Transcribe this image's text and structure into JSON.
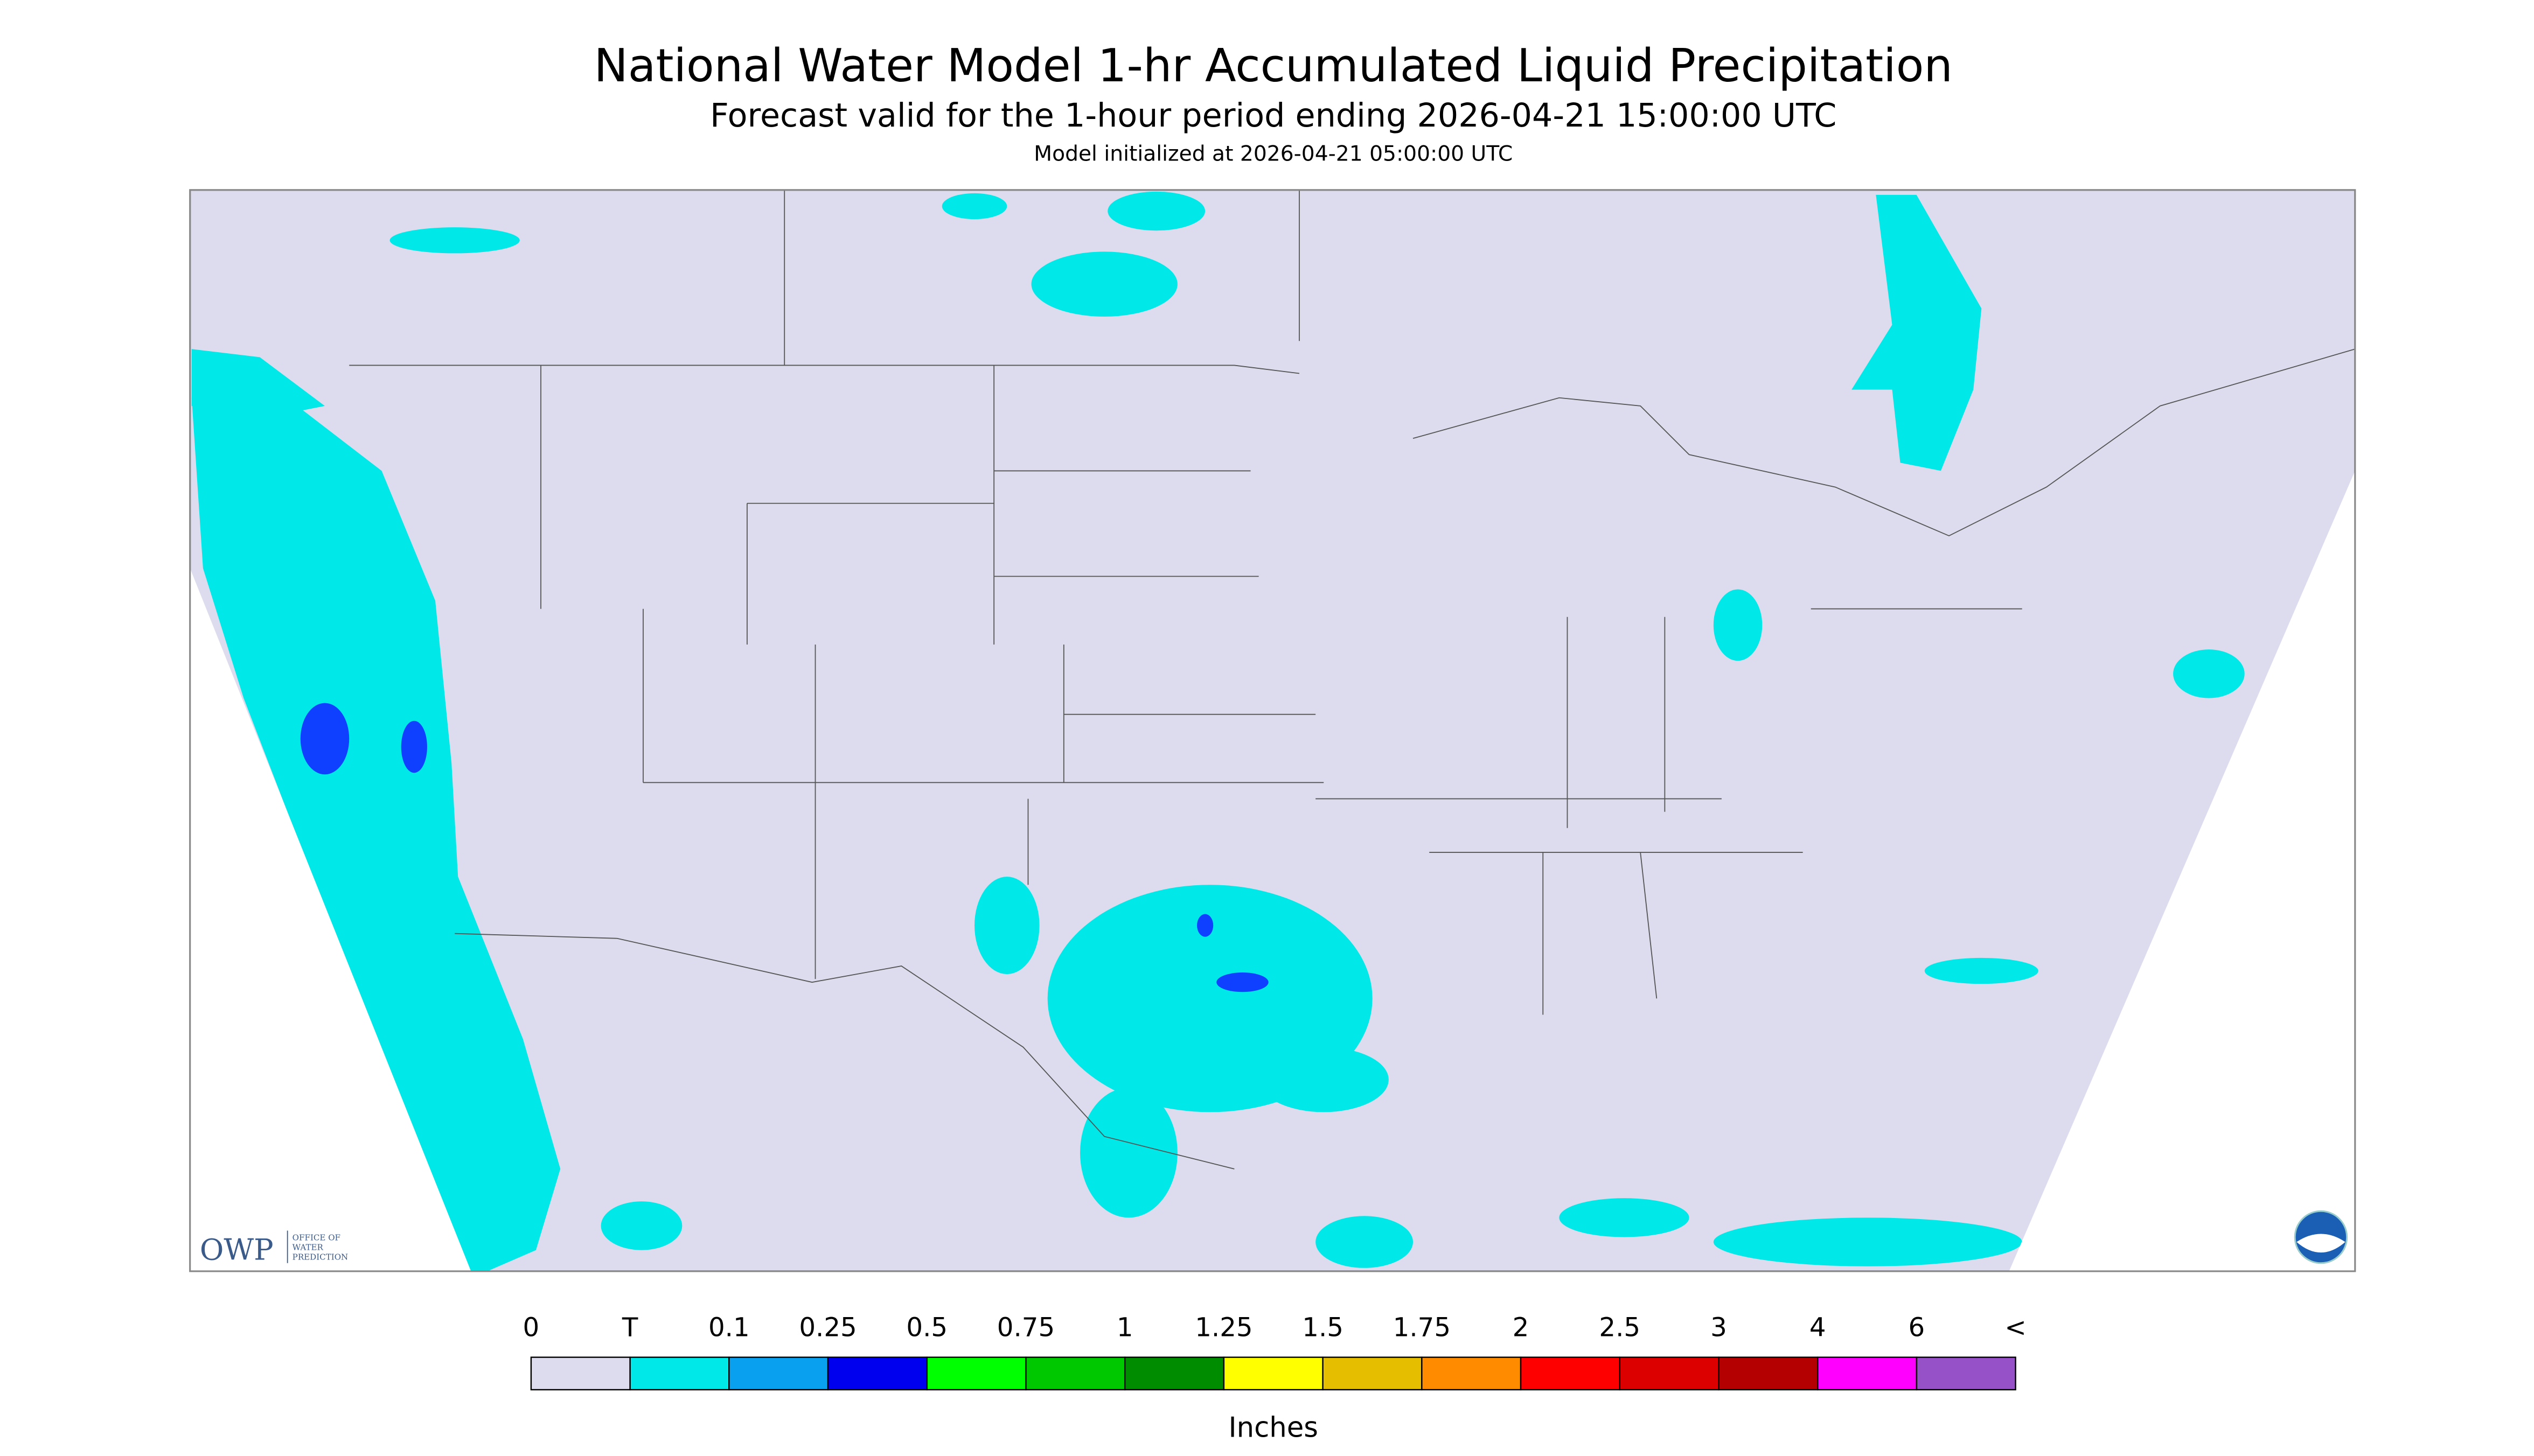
{
  "header": {
    "title": "National Water Model 1-hr Accumulated Liquid Precipitation",
    "subtitle": "Forecast valid for the 1-hour period ending 2026-04-21 15:00:00 UTC",
    "initialized": "Model initialized at 2026-04-21 05:00:00 UTC"
  },
  "legend": {
    "labels": [
      "0",
      "T",
      "0.1",
      "0.25",
      "0.5",
      "0.75",
      "1",
      "1.25",
      "1.5",
      "1.75",
      "2",
      "2.5",
      "3",
      "4",
      "6",
      "<"
    ],
    "colors": [
      "#dcdcee",
      "#00e8e8",
      "#0aa0f0",
      "#0000ee",
      "#00ff00",
      "#00c800",
      "#008c00",
      "#ffff00",
      "#e6be00",
      "#ff8c00",
      "#ff0000",
      "#dc0000",
      "#b40000",
      "#ff00ff",
      "#9650c8"
    ],
    "unit": "Inches"
  },
  "logo": {
    "name": "OWP",
    "lines": [
      "OFFICE OF",
      "WATER",
      "PREDICTION"
    ]
  }
}
